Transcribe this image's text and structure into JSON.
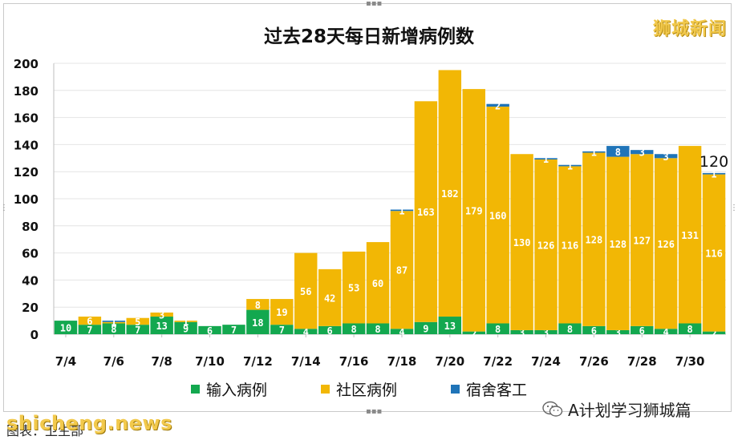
{
  "watermark_top": "狮城新闻",
  "wechat_account": "A计划学习狮城篇",
  "site_watermark": "shicheng.news",
  "caption": "图表：卫生部",
  "colors": {
    "imported": "#13a84f",
    "community": "#f2b705",
    "dormitory": "#1f74b8",
    "grid": "#e4e4e4"
  },
  "icons": [
    "wechat-icon"
  ],
  "chart_data": {
    "type": "bar",
    "stacked": true,
    "title": "过去28天每日新增病例数",
    "xlabel": "",
    "ylabel": "",
    "ylim": [
      0,
      200
    ],
    "yticks": [
      0,
      20,
      40,
      60,
      80,
      100,
      120,
      140,
      160,
      180,
      200
    ],
    "grid": true,
    "legend_position": "bottom",
    "categories": [
      "7/4",
      "7/5",
      "7/6",
      "7/7",
      "7/8",
      "7/9",
      "7/10",
      "7/11",
      "7/12",
      "7/13",
      "7/14",
      "7/15",
      "7/16",
      "7/17",
      "7/18",
      "7/19",
      "7/20",
      "7/21",
      "7/22",
      "7/23",
      "7/24",
      "7/25",
      "7/26",
      "7/27",
      "7/28",
      "7/29",
      "7/30",
      "7/31"
    ],
    "tick_labels": [
      "7/4",
      "7/6",
      "7/8",
      "7/10",
      "7/12",
      "7/14",
      "7/16",
      "7/18",
      "7/20",
      "7/22",
      "7/24",
      "7/26",
      "7/28",
      "7/30"
    ],
    "series": [
      {
        "name": "输入病例",
        "color": "#13a84f",
        "values": [
          10,
          7,
          8,
          7,
          13,
          9,
          6,
          7,
          18,
          7,
          4,
          6,
          8,
          8,
          4,
          9,
          13,
          2,
          8,
          3,
          3,
          8,
          6,
          3,
          6,
          4,
          8,
          2
        ]
      },
      {
        "name": "社区病例",
        "color": "#f2b705",
        "values": [
          0,
          6,
          1,
          5,
          3,
          1,
          0,
          0,
          8,
          19,
          56,
          42,
          53,
          60,
          87,
          163,
          182,
          179,
          160,
          130,
          126,
          116,
          128,
          128,
          127,
          126,
          131,
          116
        ]
      },
      {
        "name": "宿舍客工",
        "color": "#1f74b8",
        "values": [
          0,
          0,
          1,
          0,
          0,
          0,
          0,
          0,
          0,
          0,
          0,
          0,
          0,
          0,
          1,
          0,
          0,
          0,
          2,
          0,
          1,
          1,
          1,
          8,
          3,
          3,
          0,
          1
        ]
      }
    ],
    "annotation": {
      "category": "7/31",
      "text": "120"
    }
  }
}
